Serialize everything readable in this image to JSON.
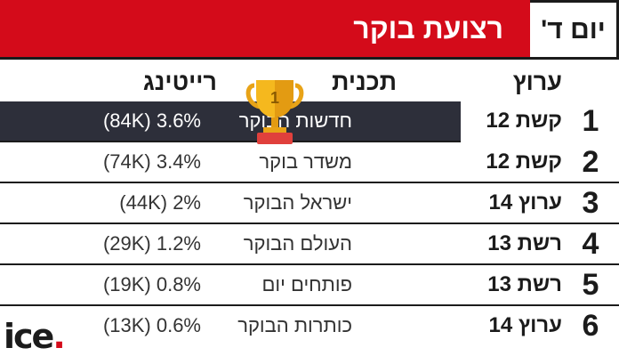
{
  "header": {
    "day": "יום ד'",
    "title": "רצועת בוקר"
  },
  "columns": {
    "channel": "ערוץ",
    "show": "תכנית",
    "rating": "רייטינג"
  },
  "trophy": {
    "number": "1",
    "icon": "trophy-icon"
  },
  "rows": [
    {
      "rank": "1",
      "channel": "קשת 12",
      "show": "חדשות הבוקר",
      "rating": "(84K) 3.6%"
    },
    {
      "rank": "2",
      "channel": "קשת 12",
      "show": "משדר בוקר",
      "rating": "(74K) 3.4%"
    },
    {
      "rank": "3",
      "channel": "ערוץ 14",
      "show": "ישראל הבוקר",
      "rating": "(44K) 2%"
    },
    {
      "rank": "4",
      "channel": "רשת 13",
      "show": "העולם הבוקר",
      "rating": "(29K) 1.2%"
    },
    {
      "rank": "5",
      "channel": "רשת 13",
      "show": "פותחים יום",
      "rating": "(19K) 0.8%"
    },
    {
      "rank": "6",
      "channel": "ערוץ 14",
      "show": "כותרות הבוקר",
      "rating": "(13K) 0.6%"
    }
  ],
  "logo": {
    "text": "ice",
    "dot": "."
  },
  "colors": {
    "accent": "#d40b1a",
    "dark": "#2d2f3a",
    "text": "#1b1b1b"
  }
}
